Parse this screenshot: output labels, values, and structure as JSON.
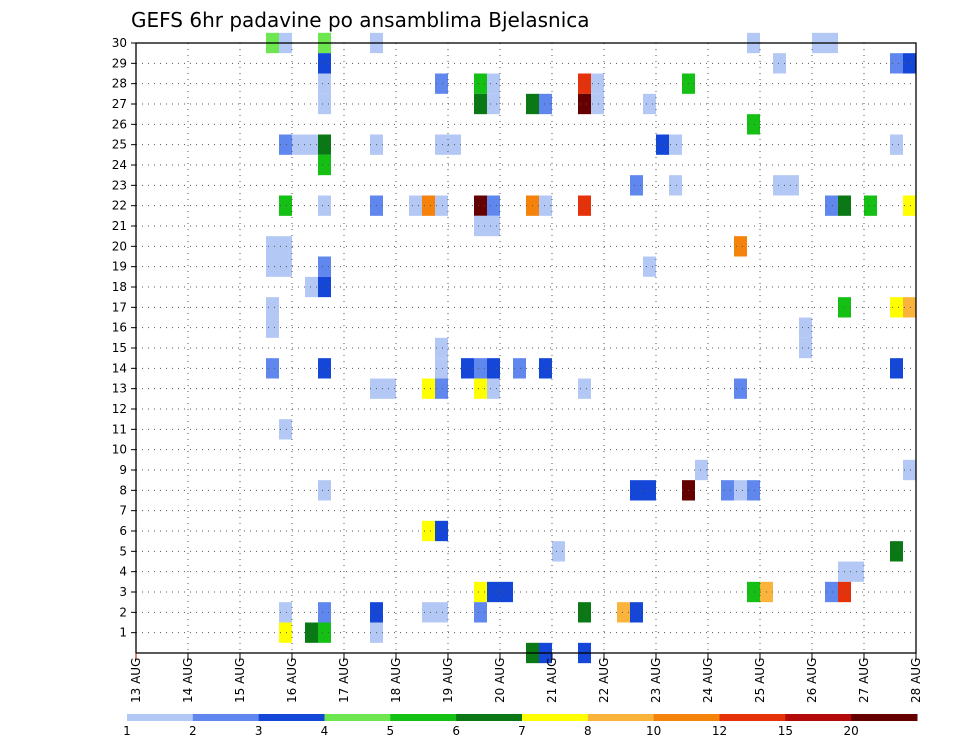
{
  "chart_data": {
    "type": "heatmap",
    "title": "GEFS 6hr padavine po ansamblima Bjelasnica",
    "x_ticks": [
      "13 AUG",
      "14 AUG",
      "15 AUG",
      "16 AUG",
      "17 AUG",
      "18 AUG",
      "19 AUG",
      "20 AUG",
      "21 AUG",
      "22 AUG",
      "23 AUG",
      "24 AUG",
      "25 AUG",
      "26 AUG",
      "27 AUG",
      "28 AUG"
    ],
    "y_ticks": [
      "1",
      "2",
      "3",
      "4",
      "5",
      "6",
      "7",
      "8",
      "9",
      "10",
      "11",
      "12",
      "13",
      "14",
      "15",
      "16",
      "17",
      "18",
      "19",
      "20",
      "21",
      "22",
      "23",
      "24",
      "25",
      "26",
      "27",
      "28",
      "29",
      "30"
    ],
    "xlim": [
      "13 AUG 00Z",
      "28 AUG 00Z"
    ],
    "ylim": [
      0,
      30
    ],
    "grid": true,
    "x_axis": "time (6-hour steps)",
    "y_axis": "ensemble member",
    "legend": {
      "placement": "bottom",
      "labels": [
        "1",
        "2",
        "3",
        "4",
        "5",
        "6",
        "7",
        "8",
        "10",
        "12",
        "15",
        "20"
      ],
      "colors": [
        "#b4c8f5",
        "#5f87ee",
        "#1446d8",
        "#6ee650",
        "#14c014",
        "#0a7814",
        "#ffff00",
        "#fab43c",
        "#f5820a",
        "#e6320a",
        "#b40a0a",
        "#640000"
      ]
    },
    "cells": [
      {
        "member": 30,
        "t": 10,
        "cls": 4
      },
      {
        "member": 30,
        "t": 11,
        "cls": 1
      },
      {
        "member": 30,
        "t": 14,
        "cls": 4
      },
      {
        "member": 30,
        "t": 18,
        "cls": 1
      },
      {
        "member": 30,
        "t": 47,
        "cls": 1
      },
      {
        "member": 30,
        "t": 52,
        "cls": 1
      },
      {
        "member": 30,
        "t": 53,
        "cls": 1
      },
      {
        "member": 29,
        "t": 14,
        "cls": 3
      },
      {
        "member": 29,
        "t": 49,
        "cls": 1
      },
      {
        "member": 29,
        "t": 58,
        "cls": 2
      },
      {
        "member": 29,
        "t": 59,
        "cls": 3
      },
      {
        "member": 28,
        "t": 14,
        "cls": 1
      },
      {
        "member": 28,
        "t": 23,
        "cls": 2
      },
      {
        "member": 28,
        "t": 26,
        "cls": 5
      },
      {
        "member": 28,
        "t": 27,
        "cls": 1
      },
      {
        "member": 28,
        "t": 34,
        "cls": 10
      },
      {
        "member": 28,
        "t": 35,
        "cls": 1
      },
      {
        "member": 28,
        "t": 42,
        "cls": 5
      },
      {
        "member": 27,
        "t": 14,
        "cls": 1
      },
      {
        "member": 27,
        "t": 26,
        "cls": 6
      },
      {
        "member": 27,
        "t": 27,
        "cls": 1
      },
      {
        "member": 27,
        "t": 30,
        "cls": 6
      },
      {
        "member": 27,
        "t": 31,
        "cls": 2
      },
      {
        "member": 27,
        "t": 34,
        "cls": 12
      },
      {
        "member": 27,
        "t": 35,
        "cls": 1
      },
      {
        "member": 27,
        "t": 39,
        "cls": 1
      },
      {
        "member": 26,
        "t": 47,
        "cls": 5
      },
      {
        "member": 25,
        "t": 11,
        "cls": 2
      },
      {
        "member": 25,
        "t": 12,
        "cls": 1
      },
      {
        "member": 25,
        "t": 13,
        "cls": 1
      },
      {
        "member": 25,
        "t": 14,
        "cls": 6
      },
      {
        "member": 25,
        "t": 18,
        "cls": 1
      },
      {
        "member": 25,
        "t": 23,
        "cls": 1
      },
      {
        "member": 25,
        "t": 24,
        "cls": 1
      },
      {
        "member": 25,
        "t": 40,
        "cls": 3
      },
      {
        "member": 25,
        "t": 41,
        "cls": 1
      },
      {
        "member": 25,
        "t": 58,
        "cls": 1
      },
      {
        "member": 24,
        "t": 14,
        "cls": 5
      },
      {
        "member": 23,
        "t": 38,
        "cls": 2
      },
      {
        "member": 23,
        "t": 41,
        "cls": 1
      },
      {
        "member": 23,
        "t": 49,
        "cls": 1
      },
      {
        "member": 23,
        "t": 50,
        "cls": 1
      },
      {
        "member": 22,
        "t": 11,
        "cls": 5
      },
      {
        "member": 22,
        "t": 14,
        "cls": 1
      },
      {
        "member": 22,
        "t": 18,
        "cls": 2
      },
      {
        "member": 22,
        "t": 21,
        "cls": 1
      },
      {
        "member": 22,
        "t": 22,
        "cls": 9
      },
      {
        "member": 22,
        "t": 23,
        "cls": 1
      },
      {
        "member": 22,
        "t": 26,
        "cls": 12
      },
      {
        "member": 22,
        "t": 27,
        "cls": 2
      },
      {
        "member": 22,
        "t": 30,
        "cls": 9
      },
      {
        "member": 22,
        "t": 31,
        "cls": 1
      },
      {
        "member": 22,
        "t": 34,
        "cls": 10
      },
      {
        "member": 22,
        "t": 53,
        "cls": 2
      },
      {
        "member": 22,
        "t": 54,
        "cls": 6
      },
      {
        "member": 22,
        "t": 56,
        "cls": 5
      },
      {
        "member": 22,
        "t": 59,
        "cls": 7
      },
      {
        "member": 21,
        "t": 26,
        "cls": 1
      },
      {
        "member": 21,
        "t": 27,
        "cls": 1
      },
      {
        "member": 20,
        "t": 10,
        "cls": 1
      },
      {
        "member": 20,
        "t": 11,
        "cls": 1
      },
      {
        "member": 20,
        "t": 46,
        "cls": 9
      },
      {
        "member": 19,
        "t": 10,
        "cls": 1
      },
      {
        "member": 19,
        "t": 11,
        "cls": 1
      },
      {
        "member": 19,
        "t": 14,
        "cls": 2
      },
      {
        "member": 19,
        "t": 39,
        "cls": 1
      },
      {
        "member": 18,
        "t": 13,
        "cls": 1
      },
      {
        "member": 18,
        "t": 14,
        "cls": 3
      },
      {
        "member": 17,
        "t": 10,
        "cls": 1
      },
      {
        "member": 17,
        "t": 54,
        "cls": 5
      },
      {
        "member": 17,
        "t": 58,
        "cls": 7
      },
      {
        "member": 17,
        "t": 59,
        "cls": 8
      },
      {
        "member": 16,
        "t": 10,
        "cls": 1
      },
      {
        "member": 16,
        "t": 51,
        "cls": 1
      },
      {
        "member": 15,
        "t": 23,
        "cls": 1
      },
      {
        "member": 15,
        "t": 51,
        "cls": 1
      },
      {
        "member": 14,
        "t": 10,
        "cls": 2
      },
      {
        "member": 14,
        "t": 14,
        "cls": 3
      },
      {
        "member": 14,
        "t": 23,
        "cls": 1
      },
      {
        "member": 14,
        "t": 25,
        "cls": 3
      },
      {
        "member": 14,
        "t": 26,
        "cls": 2
      },
      {
        "member": 14,
        "t": 27,
        "cls": 3
      },
      {
        "member": 14,
        "t": 29,
        "cls": 2
      },
      {
        "member": 14,
        "t": 31,
        "cls": 3
      },
      {
        "member": 14,
        "t": 58,
        "cls": 3
      },
      {
        "member": 13,
        "t": 18,
        "cls": 1
      },
      {
        "member": 13,
        "t": 19,
        "cls": 1
      },
      {
        "member": 13,
        "t": 22,
        "cls": 7
      },
      {
        "member": 13,
        "t": 23,
        "cls": 2
      },
      {
        "member": 13,
        "t": 26,
        "cls": 7
      },
      {
        "member": 13,
        "t": 27,
        "cls": 1
      },
      {
        "member": 13,
        "t": 34,
        "cls": 1
      },
      {
        "member": 13,
        "t": 46,
        "cls": 2
      },
      {
        "member": 11,
        "t": 11,
        "cls": 1
      },
      {
        "member": 9,
        "t": 43,
        "cls": 1
      },
      {
        "member": 9,
        "t": 59,
        "cls": 1
      },
      {
        "member": 8,
        "t": 14,
        "cls": 1
      },
      {
        "member": 8,
        "t": 38,
        "cls": 3
      },
      {
        "member": 8,
        "t": 39,
        "cls": 3
      },
      {
        "member": 8,
        "t": 42,
        "cls": 12
      },
      {
        "member": 8,
        "t": 45,
        "cls": 2
      },
      {
        "member": 8,
        "t": 46,
        "cls": 1
      },
      {
        "member": 8,
        "t": 47,
        "cls": 2
      },
      {
        "member": 6,
        "t": 22,
        "cls": 7
      },
      {
        "member": 6,
        "t": 23,
        "cls": 3
      },
      {
        "member": 5,
        "t": 32,
        "cls": 1
      },
      {
        "member": 5,
        "t": 58,
        "cls": 6
      },
      {
        "member": 4,
        "t": 54,
        "cls": 1
      },
      {
        "member": 4,
        "t": 55,
        "cls": 1
      },
      {
        "member": 3,
        "t": 26,
        "cls": 7
      },
      {
        "member": 3,
        "t": 27,
        "cls": 3
      },
      {
        "member": 3,
        "t": 28,
        "cls": 3
      },
      {
        "member": 3,
        "t": 47,
        "cls": 5
      },
      {
        "member": 3,
        "t": 48,
        "cls": 8
      },
      {
        "member": 3,
        "t": 53,
        "cls": 2
      },
      {
        "member": 3,
        "t": 54,
        "cls": 10
      },
      {
        "member": 2,
        "t": 11,
        "cls": 1
      },
      {
        "member": 2,
        "t": 14,
        "cls": 2
      },
      {
        "member": 2,
        "t": 18,
        "cls": 3
      },
      {
        "member": 2,
        "t": 22,
        "cls": 1
      },
      {
        "member": 2,
        "t": 23,
        "cls": 1
      },
      {
        "member": 2,
        "t": 26,
        "cls": 2
      },
      {
        "member": 2,
        "t": 34,
        "cls": 6
      },
      {
        "member": 2,
        "t": 37,
        "cls": 8
      },
      {
        "member": 2,
        "t": 38,
        "cls": 3
      },
      {
        "member": 1,
        "t": 11,
        "cls": 7
      },
      {
        "member": 1,
        "t": 13,
        "cls": 6
      },
      {
        "member": 1,
        "t": 14,
        "cls": 5
      },
      {
        "member": 1,
        "t": 18,
        "cls": 1
      },
      {
        "member": 0,
        "t": 30,
        "cls": 6
      },
      {
        "member": 0,
        "t": 31,
        "cls": 3
      },
      {
        "member": 0,
        "t": 34,
        "cls": 3
      }
    ]
  }
}
